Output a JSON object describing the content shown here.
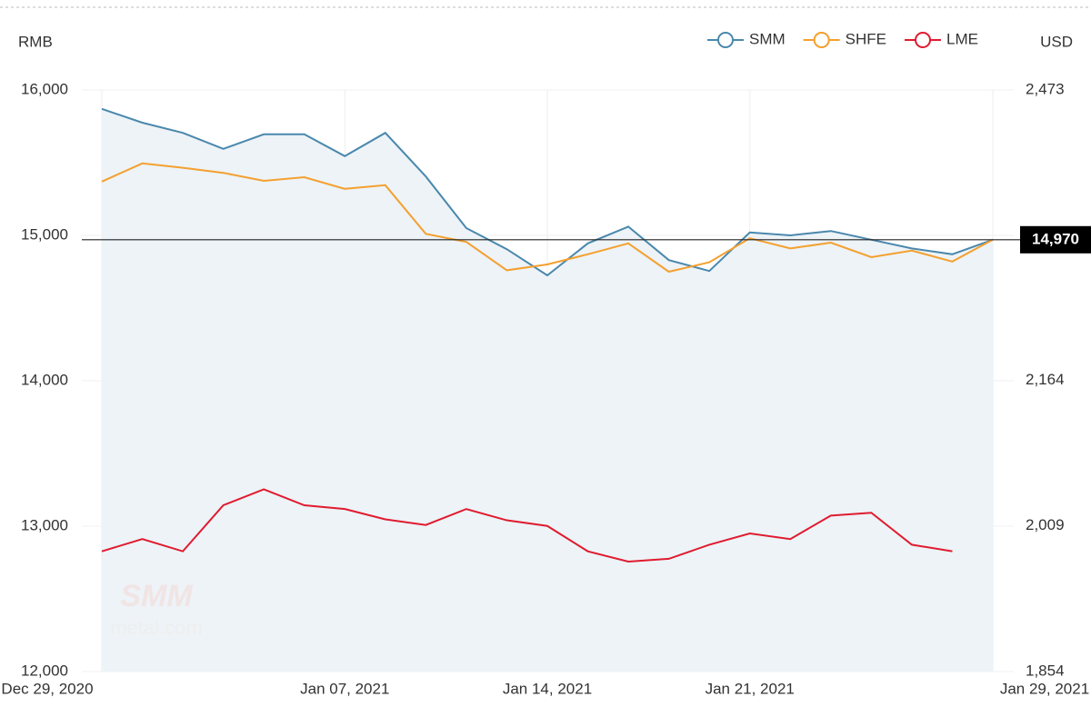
{
  "chart_data": {
    "type": "line",
    "y_axis_label": "RMB",
    "y2_axis_label": "USD",
    "categories": [
      "Dec 29, 2020",
      null,
      null,
      null,
      null,
      null,
      "Jan 07, 2021",
      null,
      null,
      null,
      null,
      "Jan 14, 2021",
      null,
      null,
      null,
      null,
      "Jan 21, 2021",
      null,
      null,
      null,
      null,
      null,
      "Jan 29, 2021"
    ],
    "series": [
      {
        "name": "SMM",
        "color": "#4a88ad",
        "area": true,
        "values": [
          15870,
          15775,
          15705,
          15595,
          15695,
          15695,
          15545,
          15705,
          15405,
          15050,
          14905,
          14725,
          14945,
          15060,
          14830,
          14755,
          15020,
          15000,
          15030,
          14970,
          14910,
          14870,
          14970
        ]
      },
      {
        "name": "SHFE",
        "color": "#f4a02e",
        "values": [
          15370,
          15495,
          15465,
          15430,
          15375,
          15400,
          15320,
          15345,
          15010,
          14955,
          14760,
          14800,
          14870,
          14945,
          14750,
          14815,
          14980,
          14910,
          14950,
          14850,
          14895,
          14820,
          14970
        ]
      },
      {
        "name": "LME",
        "color": "#e01b2f",
        "axis": "y2",
        "values": [
          1982,
          1995,
          1982,
          2031,
          2048,
          2031,
          2027,
          2016,
          2010,
          2027,
          2015,
          2009,
          1982,
          1971,
          1974,
          1989,
          2001,
          1995,
          2020,
          2023,
          1989,
          1982,
          null
        ]
      }
    ],
    "ylim": [
      12000,
      16000
    ],
    "yticks": [
      {
        "value": 12000,
        "label": "12,000"
      },
      {
        "value": 13000,
        "label": "13,000"
      },
      {
        "value": 14000,
        "label": "14,000"
      },
      {
        "value": 15000,
        "label": "15,000"
      },
      {
        "value": 16000,
        "label": "16,000"
      }
    ],
    "y2lim": [
      1854,
      2473
    ],
    "y2ticks": [
      {
        "value": 1854,
        "label": "1,854"
      },
      {
        "value": 2009,
        "label": "2,009"
      },
      {
        "value": 2164,
        "label": "2,164"
      },
      {
        "value": 2473,
        "label": "2,473"
      }
    ],
    "reference_line": {
      "value": 14970,
      "label": "14,970"
    },
    "watermark": [
      "SMM",
      "metal.com"
    ],
    "legend": "top-right",
    "grid": true
  }
}
